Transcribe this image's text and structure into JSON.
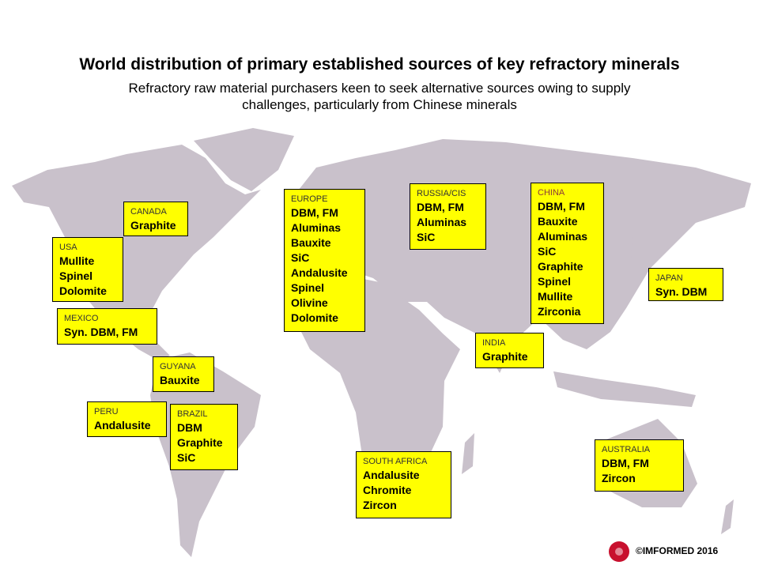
{
  "header": {
    "title": "World distribution of primary established sources of key refractory minerals",
    "subtitle": "Refractory raw material purchasers keen to seek alternative sources owing to supply challenges, particularly from Chinese minerals"
  },
  "regions": [
    {
      "name": "CANADA",
      "items": [
        "Graphite"
      ]
    },
    {
      "name": "USA",
      "items": [
        "Mullite",
        "Spinel",
        "Dolomite"
      ]
    },
    {
      "name": "MEXICO",
      "items": [
        "Syn. DBM, FM"
      ]
    },
    {
      "name": "GUYANA",
      "items": [
        "Bauxite"
      ]
    },
    {
      "name": "PERU",
      "items": [
        "Andalusite"
      ]
    },
    {
      "name": "BRAZIL",
      "items": [
        "DBM",
        "Graphite",
        "SiC"
      ]
    },
    {
      "name": "EUROPE",
      "items": [
        "DBM, FM",
        "Aluminas",
        "Bauxite",
        "SiC",
        "Andalusite",
        "Spinel",
        "Olivine",
        "Dolomite"
      ]
    },
    {
      "name": "RUSSIA/CIS",
      "items": [
        "DBM, FM",
        "Aluminas",
        "SiC"
      ]
    },
    {
      "name": "CHINA",
      "items": [
        "DBM, FM",
        "Bauxite",
        "Aluminas",
        "SiC",
        "Graphite",
        "Spinel",
        "Mullite",
        "Zirconia"
      ]
    },
    {
      "name": "JAPAN",
      "items": [
        "Syn. DBM"
      ]
    },
    {
      "name": "INDIA",
      "items": [
        "Graphite"
      ]
    },
    {
      "name": "SOUTH AFRICA",
      "items": [
        "Andalusite",
        "Chromite",
        "Zircon"
      ]
    },
    {
      "name": "AUSTRALIA",
      "items": [
        "DBM, FM",
        "Zircon"
      ]
    }
  ],
  "footer": "©IMFORMED 2016"
}
